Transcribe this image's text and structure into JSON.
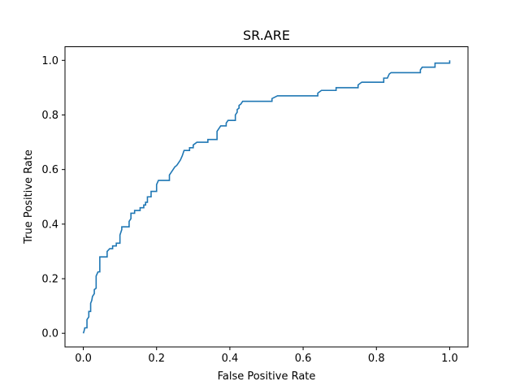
{
  "chart_data": {
    "type": "line",
    "title": "SR.ARE",
    "xlabel": "False Positive Rate",
    "ylabel": "True Positive Rate",
    "xlim": [
      -0.05,
      1.05
    ],
    "ylim": [
      -0.05,
      1.05
    ],
    "x_ticks": [
      0.0,
      0.2,
      0.4,
      0.6,
      0.8,
      1.0
    ],
    "y_ticks": [
      0.0,
      0.2,
      0.4,
      0.6,
      0.8,
      1.0
    ],
    "x_tick_labels": [
      "0.0",
      "0.2",
      "0.4",
      "0.6",
      "0.8",
      "1.0"
    ],
    "y_tick_labels": [
      "0.0",
      "0.2",
      "0.4",
      "0.6",
      "0.8",
      "1.0"
    ],
    "grid": false,
    "line_color": "#1f77b4",
    "series": [
      {
        "points": [
          [
            0.0,
            0.0
          ],
          [
            0.002,
            0.008
          ],
          [
            0.004,
            0.02
          ],
          [
            0.01,
            0.02
          ],
          [
            0.01,
            0.05
          ],
          [
            0.015,
            0.06
          ],
          [
            0.015,
            0.08
          ],
          [
            0.02,
            0.08
          ],
          [
            0.02,
            0.11
          ],
          [
            0.023,
            0.12
          ],
          [
            0.025,
            0.135
          ],
          [
            0.03,
            0.145
          ],
          [
            0.03,
            0.16
          ],
          [
            0.035,
            0.165
          ],
          [
            0.035,
            0.21
          ],
          [
            0.04,
            0.225
          ],
          [
            0.045,
            0.225
          ],
          [
            0.045,
            0.28
          ],
          [
            0.065,
            0.28
          ],
          [
            0.065,
            0.3
          ],
          [
            0.072,
            0.31
          ],
          [
            0.08,
            0.31
          ],
          [
            0.08,
            0.32
          ],
          [
            0.09,
            0.32
          ],
          [
            0.09,
            0.33
          ],
          [
            0.1,
            0.33
          ],
          [
            0.1,
            0.36
          ],
          [
            0.105,
            0.38
          ],
          [
            0.105,
            0.39
          ],
          [
            0.125,
            0.39
          ],
          [
            0.125,
            0.41
          ],
          [
            0.13,
            0.42
          ],
          [
            0.13,
            0.44
          ],
          [
            0.14,
            0.44
          ],
          [
            0.14,
            0.45
          ],
          [
            0.155,
            0.45
          ],
          [
            0.155,
            0.46
          ],
          [
            0.165,
            0.46
          ],
          [
            0.165,
            0.47
          ],
          [
            0.17,
            0.47
          ],
          [
            0.17,
            0.48
          ],
          [
            0.175,
            0.48
          ],
          [
            0.175,
            0.5
          ],
          [
            0.185,
            0.5
          ],
          [
            0.185,
            0.52
          ],
          [
            0.2,
            0.52
          ],
          [
            0.2,
            0.545
          ],
          [
            0.205,
            0.56
          ],
          [
            0.235,
            0.56
          ],
          [
            0.235,
            0.58
          ],
          [
            0.24,
            0.59
          ],
          [
            0.245,
            0.6
          ],
          [
            0.25,
            0.61
          ],
          [
            0.255,
            0.615
          ],
          [
            0.26,
            0.625
          ],
          [
            0.265,
            0.635
          ],
          [
            0.27,
            0.65
          ],
          [
            0.275,
            0.67
          ],
          [
            0.29,
            0.67
          ],
          [
            0.29,
            0.68
          ],
          [
            0.3,
            0.68
          ],
          [
            0.3,
            0.69
          ],
          [
            0.31,
            0.7
          ],
          [
            0.34,
            0.7
          ],
          [
            0.34,
            0.71
          ],
          [
            0.365,
            0.71
          ],
          [
            0.365,
            0.74
          ],
          [
            0.37,
            0.75
          ],
          [
            0.375,
            0.76
          ],
          [
            0.39,
            0.76
          ],
          [
            0.39,
            0.77
          ],
          [
            0.395,
            0.78
          ],
          [
            0.415,
            0.78
          ],
          [
            0.415,
            0.8
          ],
          [
            0.42,
            0.81
          ],
          [
            0.42,
            0.82
          ],
          [
            0.425,
            0.825
          ],
          [
            0.425,
            0.835
          ],
          [
            0.43,
            0.84
          ],
          [
            0.435,
            0.85
          ],
          [
            0.515,
            0.85
          ],
          [
            0.515,
            0.86
          ],
          [
            0.53,
            0.87
          ],
          [
            0.64,
            0.87
          ],
          [
            0.64,
            0.88
          ],
          [
            0.65,
            0.89
          ],
          [
            0.69,
            0.89
          ],
          [
            0.69,
            0.9
          ],
          [
            0.75,
            0.9
          ],
          [
            0.75,
            0.91
          ],
          [
            0.76,
            0.92
          ],
          [
            0.82,
            0.92
          ],
          [
            0.82,
            0.935
          ],
          [
            0.83,
            0.935
          ],
          [
            0.835,
            0.95
          ],
          [
            0.84,
            0.955
          ],
          [
            0.92,
            0.955
          ],
          [
            0.92,
            0.965
          ],
          [
            0.925,
            0.975
          ],
          [
            0.96,
            0.975
          ],
          [
            0.96,
            0.99
          ],
          [
            1.0,
            0.99
          ],
          [
            1.0,
            1.0
          ]
        ]
      }
    ]
  }
}
